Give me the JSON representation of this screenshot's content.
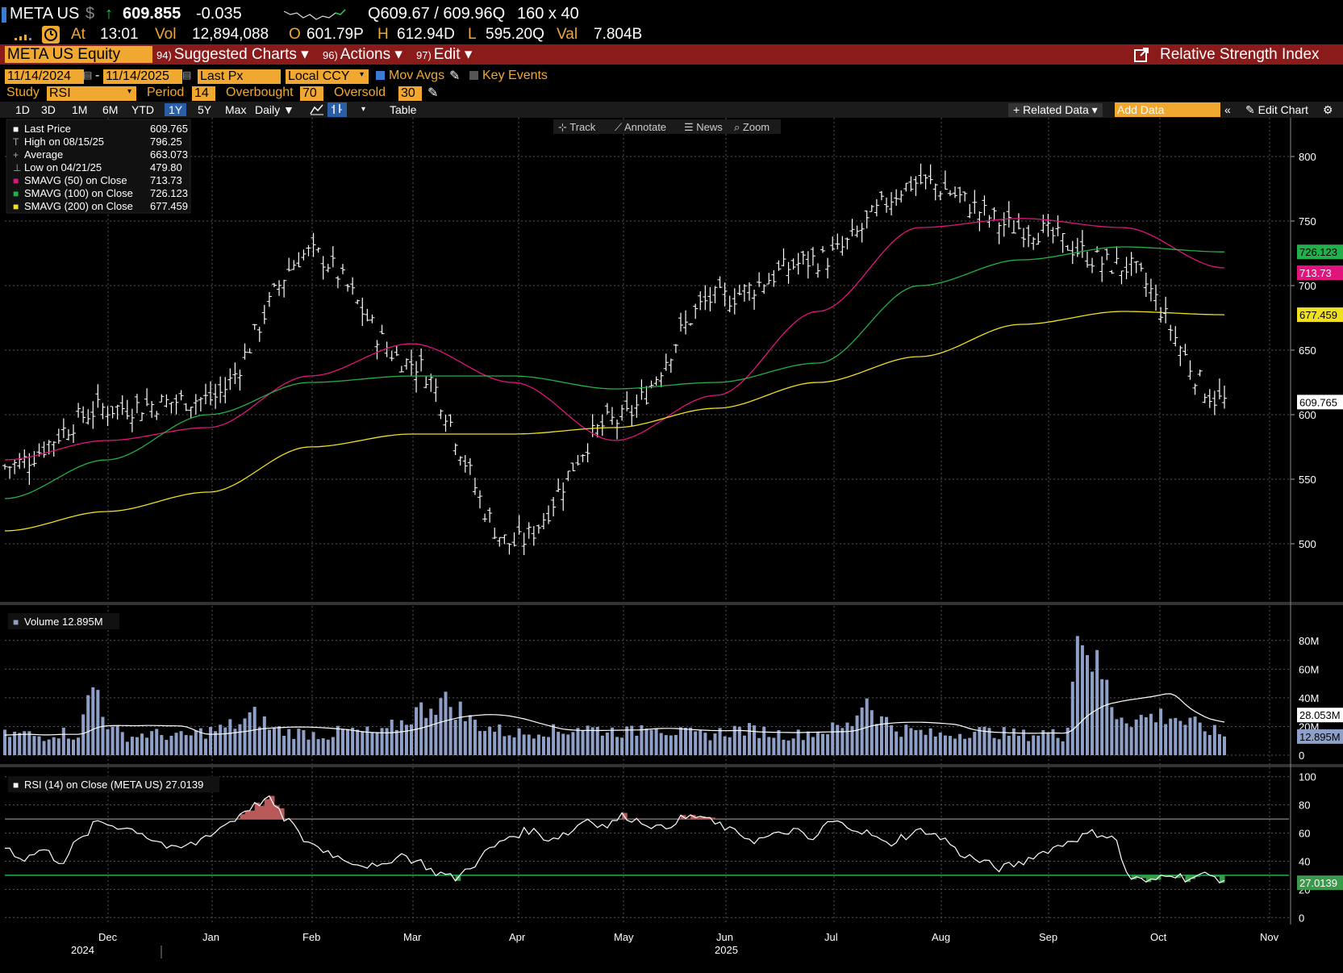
{
  "header": {
    "ticker": "META US",
    "currency_sym": "$",
    "arrow": "↑",
    "last": "609.855",
    "change": "-0.035",
    "quote": "Q609.67 / 609.96Q",
    "size": "160 x 40",
    "at_label": "At",
    "time": "13:01",
    "vol_label": "Vol",
    "volume": "12,894,088",
    "open_label": "O",
    "open": "601.79P",
    "high_label": "H",
    "high": "612.94D",
    "low_label": "L",
    "low": "595.20Q",
    "val_label": "Val",
    "value": "7.804B"
  },
  "menu": {
    "security": "META US Equity",
    "suggested_num": "94)",
    "suggested": "Suggested Charts",
    "actions_num": "96)",
    "actions": "Actions",
    "edit_num": "97)",
    "edit": "Edit",
    "title": "Relative Strength Index"
  },
  "settings": {
    "start_date": "11/14/2024",
    "end_date": "11/14/2025",
    "price_field": "Last Px",
    "currency": "Local CCY",
    "mov_avgs": "Mov Avgs",
    "key_events": "Key Events",
    "study_label": "Study",
    "study": "RSI",
    "period_label": "Period",
    "period": "14",
    "overbought_label": "Overbought",
    "overbought": "70",
    "oversold_label": "Oversold",
    "oversold": "30"
  },
  "toolbar": {
    "ranges": [
      "1D",
      "3D",
      "1M",
      "6M",
      "YTD",
      "1Y",
      "5Y",
      "Max"
    ],
    "selected_range": "1Y",
    "frequency": "Daily",
    "table": "Table",
    "related_data": "+ Related Data",
    "add_data_placeholder": "Add Data",
    "edit_chart": "Edit Chart",
    "track": "Track",
    "annotate": "Annotate",
    "news": "News",
    "zoom": "Zoom"
  },
  "legend": {
    "rows": [
      {
        "label": "Last Price",
        "value": "609.765",
        "color": "#ffffff"
      },
      {
        "label": "High on 08/15/25",
        "value": "796.25",
        "color": "#aaaaaa"
      },
      {
        "label": "Average",
        "value": "663.073",
        "color": "#aaaaaa"
      },
      {
        "label": "Low on 04/21/25",
        "value": "479.80",
        "color": "#aaaaaa"
      },
      {
        "label": "SMAVG (50)  on Close",
        "value": "713.73",
        "color": "#e0147c"
      },
      {
        "label": "SMAVG (100)  on Close",
        "value": "726.123",
        "color": "#22b04a"
      },
      {
        "label": "SMAVG (200)  on Close",
        "value": "677.459",
        "color": "#f0e020"
      }
    ],
    "volume": "Volume 12.895M",
    "rsi": "RSI (14)   on Close (META US) 27.0139"
  },
  "price_tags": {
    "sma100": "726.123",
    "sma50": "713.73",
    "sma200": "677.459",
    "last": "609.765",
    "vol_avg": "28.053M",
    "vol_last": "12.895M",
    "rsi_last": "27.0139"
  },
  "x_axis": {
    "months": [
      "Dec",
      "Jan",
      "Feb",
      "Mar",
      "Apr",
      "May",
      "Jun",
      "Jul",
      "Aug",
      "Sep",
      "Oct",
      "Nov"
    ],
    "years": [
      "2024",
      "2025"
    ]
  },
  "chart_data": [
    {
      "type": "line",
      "subtype": "ohlc",
      "title": "META US Equity",
      "y_ticks": [
        500,
        550,
        600,
        650,
        700,
        750,
        800
      ],
      "ylim": [
        455,
        830
      ],
      "x": [
        "Nov-24",
        "Dec-24",
        "Jan-25",
        "Feb-25",
        "Mar-25",
        "Apr-25",
        "May-25",
        "Jun-25",
        "Jul-25",
        "Aug-25",
        "Sep-25",
        "Oct-25",
        "Nov-25"
      ],
      "series": [
        {
          "name": "Last Price",
          "values": [
            560,
            605,
            612,
            725,
            640,
            500,
            595,
            690,
            720,
            780,
            745,
            715,
            610
          ]
        },
        {
          "name": "SMAVG (50)",
          "values": [
            565,
            580,
            590,
            630,
            655,
            625,
            580,
            615,
            680,
            745,
            752,
            745,
            713.73
          ]
        },
        {
          "name": "SMAVG (100)",
          "values": [
            535,
            565,
            600,
            625,
            630,
            630,
            620,
            625,
            640,
            700,
            720,
            730,
            726.123
          ]
        },
        {
          "name": "SMAVG (200)",
          "values": [
            510,
            525,
            540,
            575,
            585,
            585,
            590,
            605,
            625,
            645,
            670,
            680,
            677.459
          ]
        }
      ],
      "high": 796.25,
      "low": 479.8,
      "average": 663.073,
      "last": 609.765
    },
    {
      "type": "bar",
      "title": "Volume",
      "y_ticks": [
        "0",
        "20M",
        "40M",
        "60M",
        "80M"
      ],
      "ylim": [
        0,
        90
      ],
      "unit": "M",
      "values": [
        14,
        15,
        13,
        16,
        14,
        48,
        17,
        13,
        15,
        14,
        13,
        16,
        18,
        22,
        27,
        18,
        16,
        15,
        14,
        17,
        16,
        15,
        22,
        30,
        38,
        35,
        24,
        19,
        16,
        15,
        18,
        16,
        20,
        18,
        17,
        16,
        24,
        17,
        15,
        14,
        16,
        18,
        17,
        15,
        14,
        16,
        18,
        20,
        40,
        24,
        18,
        16,
        14,
        15,
        17,
        16,
        15,
        14,
        16,
        13,
        90,
        58,
        30,
        25,
        27,
        28,
        22,
        18,
        14
      ],
      "last": 12.895,
      "average_last": 28.053
    },
    {
      "type": "line",
      "title": "RSI (14)",
      "y_ticks": [
        0,
        20,
        40,
        60,
        80,
        100
      ],
      "ylim": [
        -5,
        105
      ],
      "overbought": 70,
      "oversold": 30,
      "values": [
        50,
        42,
        48,
        40,
        55,
        68,
        65,
        62,
        55,
        48,
        52,
        60,
        68,
        78,
        84,
        70,
        55,
        48,
        42,
        38,
        35,
        45,
        40,
        32,
        28,
        38,
        50,
        58,
        62,
        56,
        60,
        70,
        65,
        72,
        68,
        63,
        70,
        72,
        66,
        60,
        55,
        58,
        62,
        55,
        68,
        65,
        60,
        52,
        58,
        62,
        56,
        45,
        40,
        35,
        38,
        45,
        50,
        56,
        60,
        58,
        28,
        25,
        32,
        28,
        30,
        27.01
      ],
      "last": 27.0139
    }
  ]
}
